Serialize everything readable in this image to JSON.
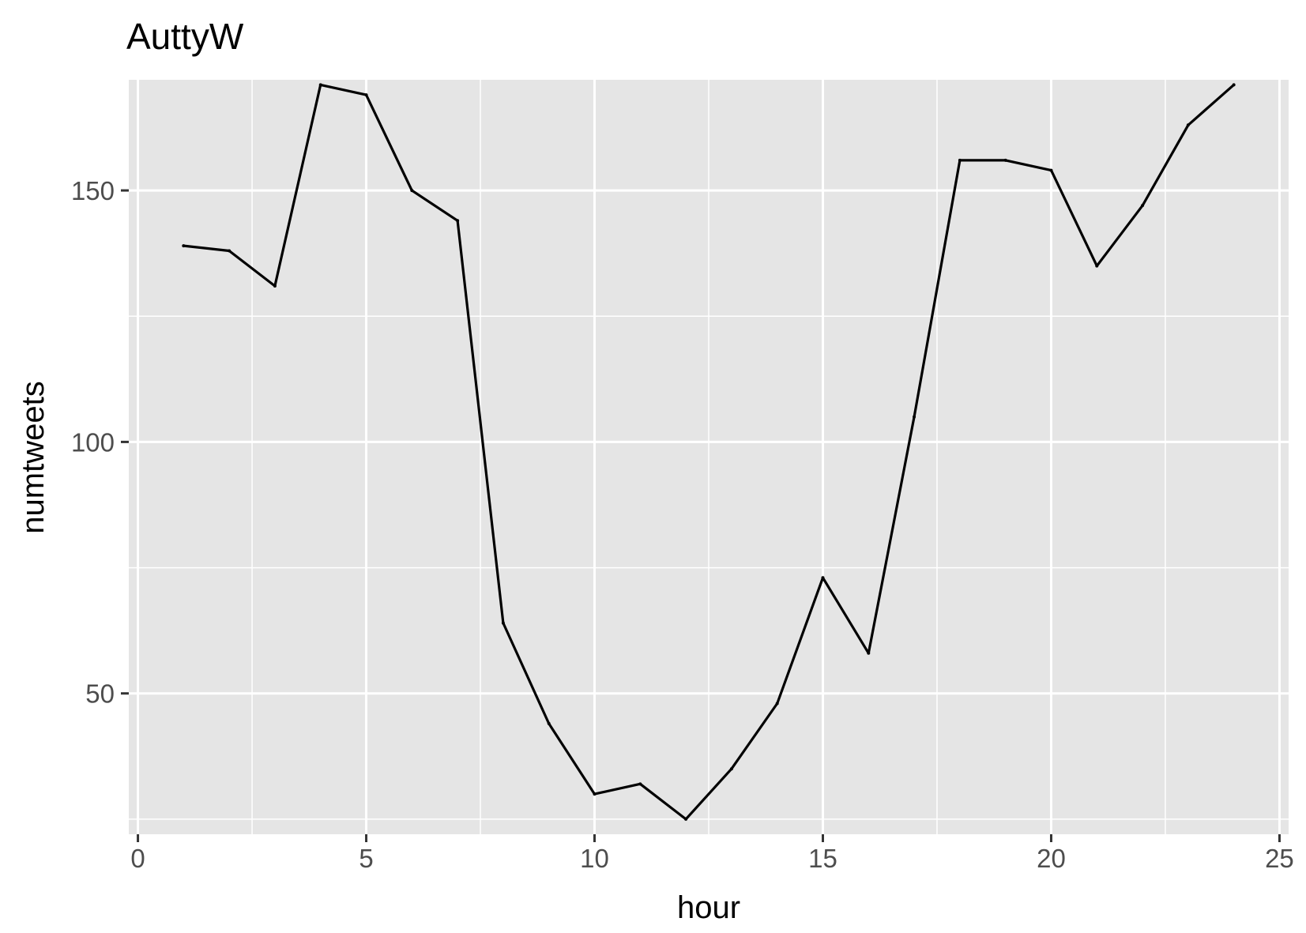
{
  "chart_data": {
    "type": "line",
    "title": "AuttyW",
    "xlabel": "hour",
    "ylabel": "numtweets",
    "xlim": [
      -0.2,
      25.2
    ],
    "ylim": [
      22,
      172
    ],
    "x_ticks": [
      0,
      5,
      10,
      15,
      20,
      25
    ],
    "x_tick_labels": [
      "0",
      "5",
      "10",
      "15",
      "20",
      "25"
    ],
    "y_ticks": [
      50,
      100,
      150
    ],
    "y_tick_labels": [
      "50",
      "100",
      "150"
    ],
    "grid": true,
    "legend": "none",
    "colors": {
      "panel_background": "#e5e5e5",
      "grid_line": "#ffffff",
      "series_line": "#000000"
    },
    "series": [
      {
        "x": [
          1,
          2,
          3,
          4,
          5,
          6,
          7,
          8,
          9,
          10,
          11,
          12,
          13,
          14,
          15,
          16,
          17,
          18,
          19,
          20,
          21,
          22,
          23,
          24
        ],
        "y": [
          139,
          138,
          131,
          171,
          169,
          150,
          144,
          64,
          44,
          30,
          32,
          25,
          35,
          48,
          73,
          58,
          105,
          156,
          156,
          154,
          135,
          147,
          163,
          171
        ]
      }
    ]
  }
}
